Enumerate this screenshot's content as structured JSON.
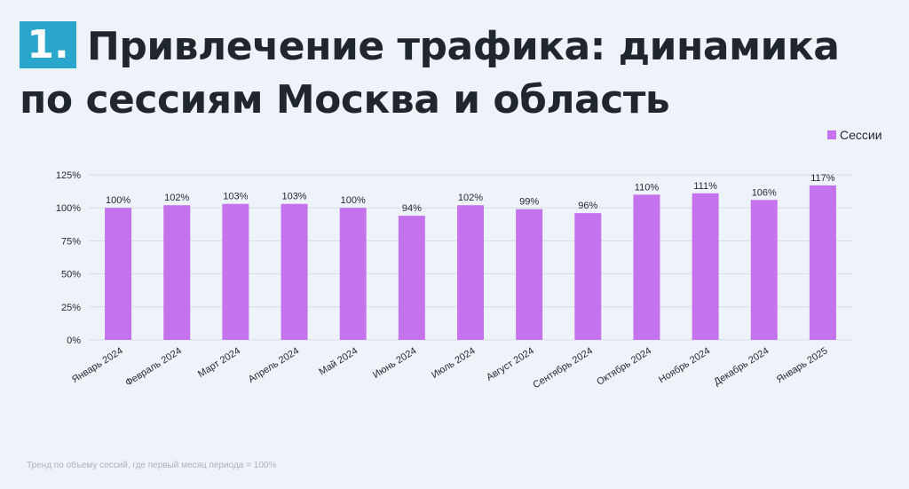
{
  "header": {
    "number": "1.",
    "title_line1": "Привлечение трафика: динамика",
    "title_line2": "по сессиям Москва и область"
  },
  "footnote": "Тренд по объему сессий, где первый месяц периода = 100%",
  "colors": {
    "bar": "#c473ec",
    "badge": "#2aa5cc",
    "grid": "#d6dde6"
  },
  "chart_data": {
    "type": "bar",
    "categories": [
      "Январь 2024",
      "Февраль 2024",
      "Март 2024",
      "Апрель 2024",
      "Май 2024",
      "Июнь 2024",
      "Июль 2024",
      "Август 2024",
      "Сентябрь 2024",
      "Октябрь 2024",
      "Ноябрь 2024",
      "Декабрь 2024",
      "Январь 2025"
    ],
    "series": [
      {
        "name": "Сессии",
        "values": [
          100,
          102,
          103,
          103,
          100,
          94,
          102,
          99,
          96,
          110,
          111,
          106,
          117
        ]
      }
    ],
    "data_labels": [
      "100%",
      "102%",
      "103%",
      "103%",
      "100%",
      "94%",
      "102%",
      "99%",
      "96%",
      "110%",
      "111%",
      "106%",
      "117%"
    ],
    "ylim": [
      0,
      125
    ],
    "yticks": [
      0,
      25,
      50,
      75,
      100,
      125
    ],
    "ytick_labels": [
      "0%",
      "25%",
      "50%",
      "75%",
      "100%",
      "125%"
    ],
    "grid": true,
    "legend_position": "top-right"
  }
}
